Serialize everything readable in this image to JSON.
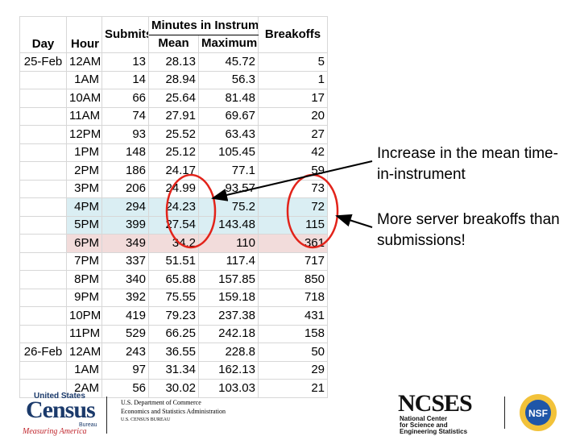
{
  "table": {
    "headers": {
      "day": "Day",
      "hour": "Hour",
      "submits": "Submits",
      "minutes_group": "Minutes in Instrument",
      "mean": "Mean",
      "maximum": "Maximum",
      "breakoffs": "Breakoffs"
    },
    "rows": [
      {
        "day": "25-Feb",
        "hour": "12AM",
        "submits": "13",
        "mean": "28.13",
        "maximum": "45.72",
        "breakoffs": "5",
        "hl": ""
      },
      {
        "day": "",
        "hour": "1AM",
        "submits": "14",
        "mean": "28.94",
        "maximum": "56.3",
        "breakoffs": "1",
        "hl": ""
      },
      {
        "day": "",
        "hour": "10AM",
        "submits": "66",
        "mean": "25.64",
        "maximum": "81.48",
        "breakoffs": "17",
        "hl": ""
      },
      {
        "day": "",
        "hour": "11AM",
        "submits": "74",
        "mean": "27.91",
        "maximum": "69.67",
        "breakoffs": "20",
        "hl": ""
      },
      {
        "day": "",
        "hour": "12PM",
        "submits": "93",
        "mean": "25.52",
        "maximum": "63.43",
        "breakoffs": "27",
        "hl": ""
      },
      {
        "day": "",
        "hour": "1PM",
        "submits": "148",
        "mean": "25.12",
        "maximum": "105.45",
        "breakoffs": "42",
        "hl": ""
      },
      {
        "day": "",
        "hour": "2PM",
        "submits": "186",
        "mean": "24.17",
        "maximum": "77.1",
        "breakoffs": "59",
        "hl": ""
      },
      {
        "day": "",
        "hour": "3PM",
        "submits": "206",
        "mean": "24.99",
        "maximum": "93.57",
        "breakoffs": "73",
        "hl": ""
      },
      {
        "day": "",
        "hour": "4PM",
        "submits": "294",
        "mean": "24.23",
        "maximum": "75.2",
        "breakoffs": "72",
        "hl": "blue"
      },
      {
        "day": "",
        "hour": "5PM",
        "submits": "399",
        "mean": "27.54",
        "maximum": "143.48",
        "breakoffs": "115",
        "hl": "blue"
      },
      {
        "day": "",
        "hour": "6PM",
        "submits": "349",
        "mean": "34.2",
        "maximum": "110",
        "breakoffs": "361",
        "hl": "pink"
      },
      {
        "day": "",
        "hour": "7PM",
        "submits": "337",
        "mean": "51.51",
        "maximum": "117.4",
        "breakoffs": "717",
        "hl": ""
      },
      {
        "day": "",
        "hour": "8PM",
        "submits": "340",
        "mean": "65.88",
        "maximum": "157.85",
        "breakoffs": "850",
        "hl": ""
      },
      {
        "day": "",
        "hour": "9PM",
        "submits": "392",
        "mean": "75.55",
        "maximum": "159.18",
        "breakoffs": "718",
        "hl": ""
      },
      {
        "day": "",
        "hour": "10PM",
        "submits": "419",
        "mean": "79.23",
        "maximum": "237.38",
        "breakoffs": "431",
        "hl": ""
      },
      {
        "day": "",
        "hour": "11PM",
        "submits": "529",
        "mean": "66.25",
        "maximum": "242.18",
        "breakoffs": "158",
        "hl": ""
      },
      {
        "day": "26-Feb",
        "hour": "12AM",
        "submits": "243",
        "mean": "36.55",
        "maximum": "228.8",
        "breakoffs": "50",
        "hl": ""
      },
      {
        "day": "",
        "hour": "1AM",
        "submits": "97",
        "mean": "31.34",
        "maximum": "162.13",
        "breakoffs": "29",
        "hl": ""
      },
      {
        "day": "",
        "hour": "2AM",
        "submits": "56",
        "mean": "30.02",
        "maximum": "103.03",
        "breakoffs": "21",
        "hl": ""
      }
    ]
  },
  "callouts": {
    "mean_increase": "Increase in the mean time-in-instrument",
    "breakoffs": "More server breakoffs than submissions!"
  },
  "footer": {
    "census_top": "United States",
    "census_word": "Census",
    "census_bureau": "Bureau",
    "census_tagline": "Measuring America",
    "dept_line1": "U.S. Department of Commerce",
    "dept_line2": "Economics and Statistics Administration",
    "dept_line3": "U.S. CENSUS BUREAU",
    "ncses_word": "NCSES",
    "ncses_line1": "National Center",
    "ncses_line2": "for Science and",
    "ncses_line3": "Engineering Statistics",
    "nsf_label": "NSF"
  },
  "colors": {
    "highlight_blue": "#daeef3",
    "highlight_pink": "#f2dcdb",
    "circle_red": "#e2231a",
    "census_blue": "#1b3a6b",
    "census_red": "#c0262d"
  }
}
